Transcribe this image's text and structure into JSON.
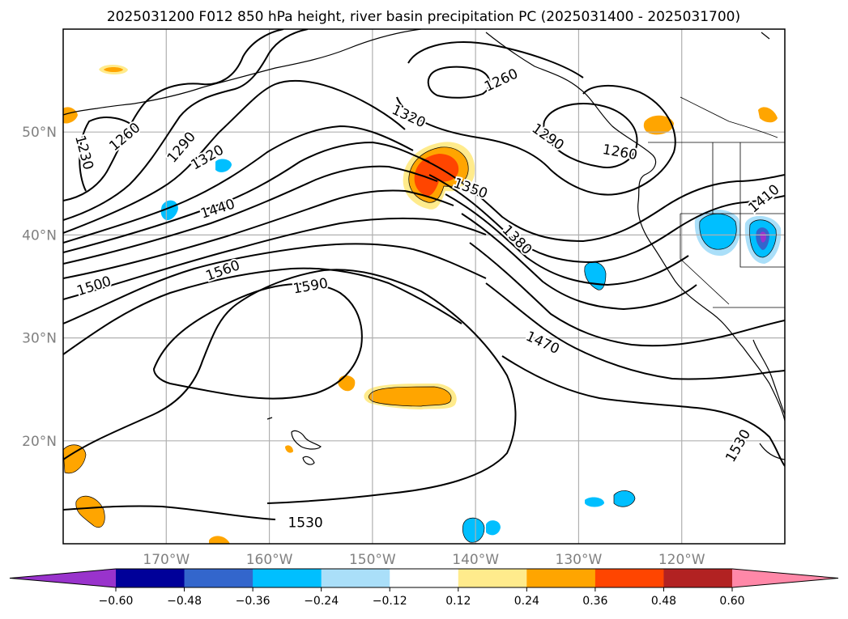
{
  "title": "2025031200 F012 850 hPa height, river basin precipitation PC (2025031400 - 2025031700)",
  "map": {
    "lon_range": [
      -180,
      -110
    ],
    "lat_range": [
      10,
      60
    ],
    "lon_ticks": [
      {
        "lon": -170,
        "label": "170°W"
      },
      {
        "lon": -160,
        "label": "160°W"
      },
      {
        "lon": -150,
        "label": "150°W"
      },
      {
        "lon": -140,
        "label": "140°W"
      },
      {
        "lon": -130,
        "label": "130°W"
      },
      {
        "lon": -120,
        "label": "120°W"
      }
    ],
    "lat_ticks": [
      {
        "lat": 20,
        "label": "20°N"
      },
      {
        "lat": 30,
        "label": "30°N"
      },
      {
        "lat": 40,
        "label": "40°N"
      },
      {
        "lat": 50,
        "label": "50°N"
      }
    ],
    "gridlines": true
  },
  "contour_labels": [
    {
      "text": "1230",
      "lon": -178.0,
      "lat": 48.0,
      "rot": 75
    },
    {
      "text": "1260",
      "lon": -174.0,
      "lat": 49.5,
      "rot": -40
    },
    {
      "text": "1290",
      "lon": -168.5,
      "lat": 48.5,
      "rot": -50
    },
    {
      "text": "1320",
      "lon": -166.0,
      "lat": 47.5,
      "rot": -30
    },
    {
      "text": "1440",
      "lon": -165.0,
      "lat": 42.5,
      "rot": -18
    },
    {
      "text": "1500",
      "lon": -177.0,
      "lat": 35.0,
      "rot": -18
    },
    {
      "text": "1560",
      "lon": -164.5,
      "lat": 36.5,
      "rot": -20
    },
    {
      "text": "1590",
      "lon": -156.0,
      "lat": 35.0,
      "rot": -10
    },
    {
      "text": "1320",
      "lon": -146.5,
      "lat": 51.5,
      "rot": 25
    },
    {
      "text": "1260",
      "lon": -137.5,
      "lat": 55.0,
      "rot": -25
    },
    {
      "text": "1290",
      "lon": -133.0,
      "lat": 49.5,
      "rot": 35
    },
    {
      "text": "1260",
      "lon": -126.0,
      "lat": 48.0,
      "rot": 10
    },
    {
      "text": "1350",
      "lon": -140.5,
      "lat": 44.5,
      "rot": 20
    },
    {
      "text": "1380",
      "lon": -136.0,
      "lat": 39.5,
      "rot": 45
    },
    {
      "text": "1470",
      "lon": -133.5,
      "lat": 29.5,
      "rot": 25
    },
    {
      "text": "1410",
      "lon": -112.0,
      "lat": 43.5,
      "rot": -40
    },
    {
      "text": "1530",
      "lon": -156.5,
      "lat": 12.0,
      "rot": 0
    },
    {
      "text": "1530",
      "lon": -114.5,
      "lat": 19.5,
      "rot": -60
    }
  ],
  "colorbar": {
    "tick_labels": [
      "−0.60",
      "−0.48",
      "−0.36",
      "−0.24",
      "−0.12",
      "0.12",
      "0.24",
      "0.36",
      "0.48",
      "0.60"
    ],
    "colors": [
      "#9933cc",
      "#000099",
      "#3366cc",
      "#00bfff",
      "#aadff9",
      "#ffffff",
      "#ffeb8c",
      "#ffa500",
      "#ff4500",
      "#b22222",
      "#ff88a8"
    ]
  }
}
